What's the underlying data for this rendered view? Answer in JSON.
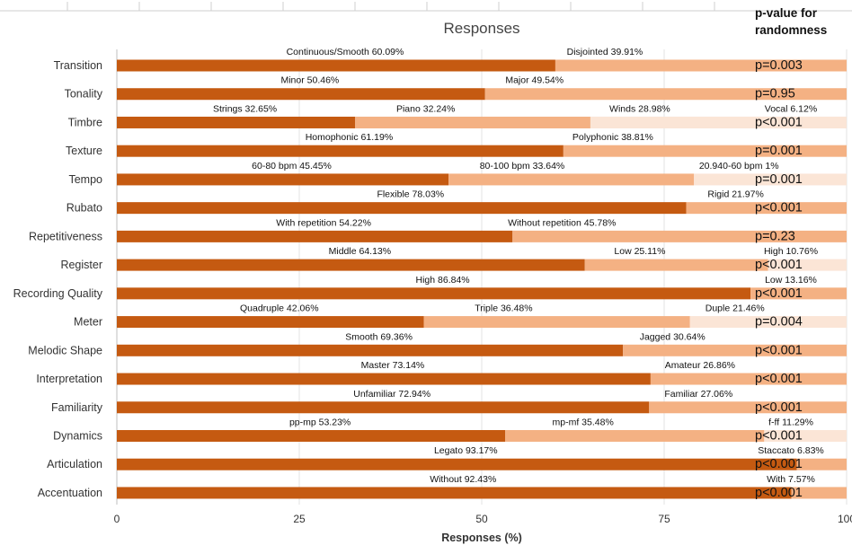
{
  "chart_data": {
    "type": "bar",
    "orientation": "horizontal",
    "stacked": true,
    "title": "Responses",
    "xlabel": "Responses (%)",
    "xlim": [
      0,
      100
    ],
    "xticks": [
      "0",
      "25",
      "50",
      "75",
      "100"
    ],
    "pvalue_header": [
      "p-value for",
      "randomness"
    ],
    "colors": [
      "#c55a11",
      "#f4b183",
      "#fbe5d6",
      "#d9d9d9"
    ],
    "rows": [
      {
        "category": "Transition",
        "pvalue": "p=0.003",
        "segments": [
          {
            "label": "Continuous/Smooth 60.09%",
            "value": 60.09
          },
          {
            "label": "Disjointed 39.91%",
            "value": 39.91
          }
        ]
      },
      {
        "category": "Tonality",
        "pvalue": "p=0.95",
        "segments": [
          {
            "label": "Minor 50.46%",
            "value": 50.46
          },
          {
            "label": "Major 49.54%",
            "value": 49.54
          }
        ]
      },
      {
        "category": "Timbre",
        "pvalue": "p<0.001",
        "segments": [
          {
            "label": "Strings 32.65%",
            "value": 32.65
          },
          {
            "label": "Piano 32.24%",
            "value": 32.24
          },
          {
            "label": "Winds 28.98%",
            "value": 28.98
          },
          {
            "label": "Vocal 6.12%",
            "value": 6.12
          }
        ]
      },
      {
        "category": "Texture",
        "pvalue": "p=0.001",
        "segments": [
          {
            "label": "Homophonic 61.19%",
            "value": 61.19
          },
          {
            "label": "Polyphonic 38.81%",
            "value": 38.81
          }
        ]
      },
      {
        "category": "Tempo",
        "pvalue": "p=0.001",
        "segments": [
          {
            "label": "60-80 bpm 45.45%",
            "value": 45.45
          },
          {
            "label": "80-100 bpm 33.64%",
            "value": 33.64
          },
          {
            "label": "20.940-60 bpm 1%",
            "value": 20.91
          }
        ]
      },
      {
        "category": "Rubato",
        "pvalue": "p<0.001",
        "segments": [
          {
            "label": "Flexible 78.03%",
            "value": 78.03
          },
          {
            "label": "Rigid 21.97%",
            "value": 21.97
          }
        ]
      },
      {
        "category": "Repetitiveness",
        "pvalue": "p=0.23",
        "segments": [
          {
            "label": "With repetition 54.22%",
            "value": 54.22
          },
          {
            "label": "Without repetition 45.78%",
            "value": 45.78
          }
        ]
      },
      {
        "category": "Register",
        "pvalue": "p<0.001",
        "segments": [
          {
            "label": "Middle 64.13%",
            "value": 64.13
          },
          {
            "label": "Low 25.11%",
            "value": 25.11
          },
          {
            "label": "High 10.76%",
            "value": 10.76
          }
        ]
      },
      {
        "category": "Recording Quality",
        "pvalue": "p<0.001",
        "segments": [
          {
            "label": "High 86.84%",
            "value": 86.84
          },
          {
            "label": "Low 13.16%",
            "value": 13.16
          }
        ]
      },
      {
        "category": "Meter",
        "pvalue": "p=0.004",
        "segments": [
          {
            "label": "Quadruple 42.06%",
            "value": 42.06
          },
          {
            "label": "Triple 36.48%",
            "value": 36.48
          },
          {
            "label": "Duple 21.46%",
            "value": 21.46
          }
        ]
      },
      {
        "category": "Melodic Shape",
        "pvalue": "p<0.001",
        "segments": [
          {
            "label": "Smooth 69.36%",
            "value": 69.36
          },
          {
            "label": "Jagged 30.64%",
            "value": 30.64
          }
        ]
      },
      {
        "category": "Interpretation",
        "pvalue": "p<0.001",
        "segments": [
          {
            "label": "Master 73.14%",
            "value": 73.14
          },
          {
            "label": "Amateur 26.86%",
            "value": 26.86
          }
        ]
      },
      {
        "category": "Familiarity",
        "pvalue": "p<0.001",
        "segments": [
          {
            "label": "Unfamiliar 72.94%",
            "value": 72.94
          },
          {
            "label": "Familiar 27.06%",
            "value": 27.06
          }
        ]
      },
      {
        "category": "Dynamics",
        "pvalue": "p<0.001",
        "segments": [
          {
            "label": "pp-mp 53.23%",
            "value": 53.23
          },
          {
            "label": "mp-mf 35.48%",
            "value": 35.48
          },
          {
            "label": "f-ff  11.29%",
            "value": 11.29
          }
        ]
      },
      {
        "category": "Articulation",
        "pvalue": "p<0.001",
        "segments": [
          {
            "label": "Legato 93.17%",
            "value": 93.17
          },
          {
            "label": "Staccato 6.83%",
            "value": 6.83
          }
        ]
      },
      {
        "category": "Accentuation",
        "pvalue": "p<0.001",
        "segments": [
          {
            "label": "Without 92.43%",
            "value": 92.43
          },
          {
            "label": "With 7.57%",
            "value": 7.57
          }
        ]
      }
    ]
  }
}
